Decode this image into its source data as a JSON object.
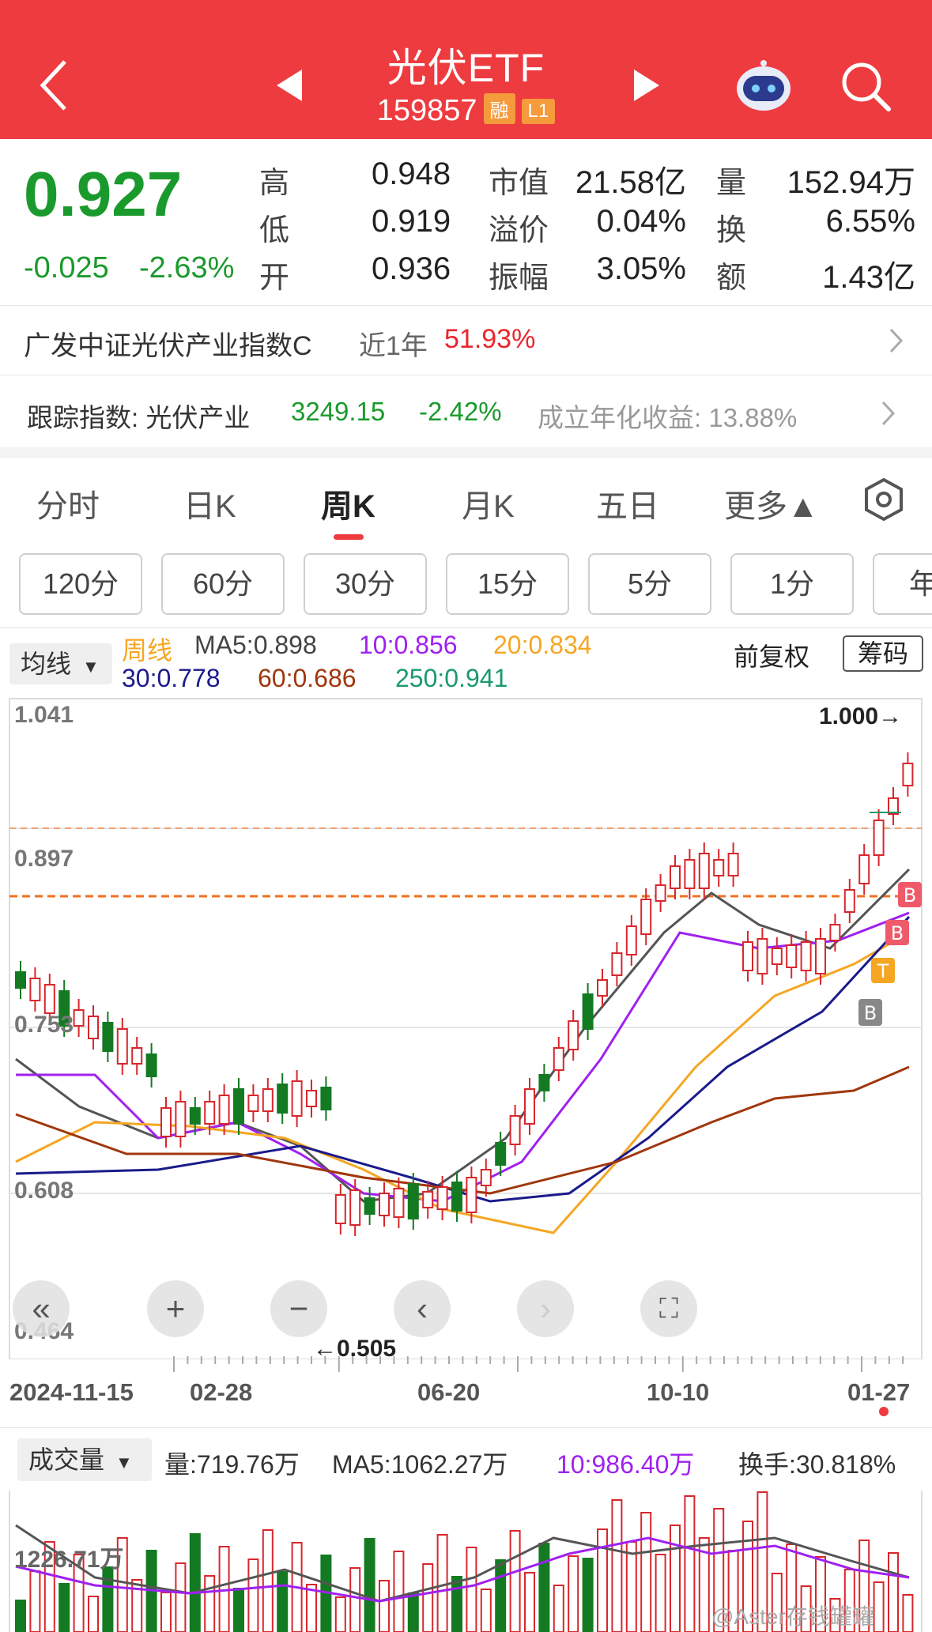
{
  "header": {
    "title": "光伏ETF",
    "code": "159857",
    "tag_rong": "融",
    "tag_l1": "L1"
  },
  "quote": {
    "price": "0.927",
    "change": "-0.025",
    "change_pct": "-2.63%",
    "high_label": "高",
    "high": "0.948",
    "low_label": "低",
    "low": "0.919",
    "open_label": "开",
    "open": "0.936",
    "mktcap_label": "市值",
    "mktcap": "21.58亿",
    "premium_label": "溢价",
    "premium": "0.04%",
    "amplitude_label": "振幅",
    "amplitude": "3.05%",
    "volume_label": "量",
    "volume": "152.94万",
    "turnover_label": "换",
    "turnover": "6.55%",
    "amount_label": "额",
    "amount": "1.43亿"
  },
  "info": {
    "index_name": "广发中证光伏产业指数C",
    "year_label": "近1年",
    "year_return": "51.93%",
    "track_label": "跟踪指数: 光伏产业",
    "track_value": "3249.15",
    "track_change": "-2.42%",
    "annual_label": "成立年化收益: 13.88%"
  },
  "tabs": [
    "分时",
    "日K",
    "周K",
    "月K",
    "五日",
    "更多▲"
  ],
  "periods": [
    "120分",
    "60分",
    "30分",
    "15分",
    "5分",
    "1分",
    "年"
  ],
  "indicators": {
    "selector": "均线",
    "period": "周线",
    "ma5": "MA5:0.898",
    "ma10": "10:0.856",
    "ma20": "20:0.834",
    "ma30": "30:0.778",
    "ma60": "60:0.686",
    "ma250": "250:0.941",
    "fq": "前复权",
    "chip": "筹码"
  },
  "axis": {
    "y1": "1.041",
    "y2": "0.897",
    "y3": "0.753",
    "y4": "0.608",
    "y5": "0.464",
    "high_mark": "1.000→",
    "low_mark": "←0.505",
    "dates": [
      "2024-11-15",
      "02-28",
      "06-20",
      "10-10",
      "01-27"
    ]
  },
  "volume": {
    "selector": "成交量",
    "vol": "量:719.76万",
    "ma5": "MA5:1062.27万",
    "ma10": "10:986.40万",
    "turn": "换手:30.818%",
    "scale": "1226.71万"
  },
  "watermark": "@Aster存钱罐罐",
  "colors": {
    "up": "#d8262c",
    "down": "#137a22",
    "ma5": "#555555",
    "ma10": "#a020f0",
    "ma20": "#f5a623",
    "ma30": "#1a1a8c",
    "ma60": "#a0360c"
  }
}
